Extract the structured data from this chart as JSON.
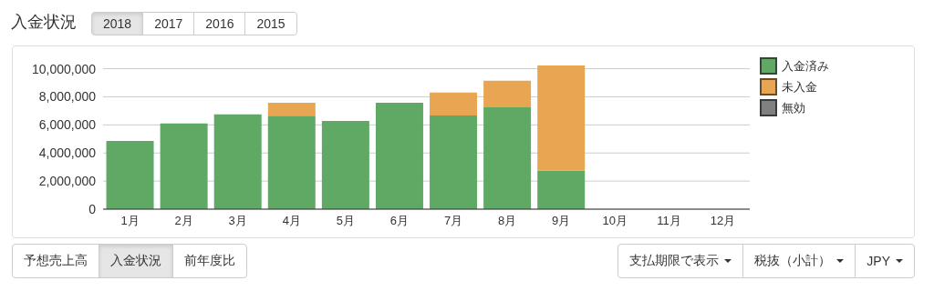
{
  "chart_data": {
    "type": "bar",
    "title": "入金状況",
    "stacked": true,
    "legend": "right",
    "grid": "y",
    "categories": [
      "1月",
      "2月",
      "3月",
      "4月",
      "5月",
      "6月",
      "7月",
      "8月",
      "9月",
      "10月",
      "11月",
      "12月"
    ],
    "series": [
      {
        "name": "入金済み",
        "color": "#5fa965",
        "values": [
          4850000,
          6100000,
          6750000,
          6650000,
          6280000,
          7580000,
          6670000,
          7250000,
          2730000,
          null,
          null,
          null
        ]
      },
      {
        "name": "未入金",
        "color": "#e8a653",
        "values": [
          null,
          null,
          null,
          930000,
          null,
          null,
          1630000,
          1900000,
          7500000,
          null,
          null,
          null
        ]
      },
      {
        "name": "無効",
        "color": "#808080",
        "values": [
          null,
          null,
          null,
          null,
          null,
          null,
          null,
          null,
          null,
          null,
          null,
          null
        ]
      }
    ],
    "yticks": [
      0,
      {
        "value": 2000000,
        "label": "2,000,000"
      },
      {
        "value": 4000000,
        "label": "4,000,000"
      },
      {
        "value": 6000000,
        "label": "6,000,000"
      },
      {
        "value": 8000000,
        "label": "8,000,000"
      },
      {
        "value": 10000000,
        "label": "10,000,000"
      }
    ],
    "ylim": [
      0,
      10230000
    ],
    "annotations": [
      "2018",
      "2017",
      "2016",
      "2015",
      "予想売上高",
      "入金状況",
      "前年度比",
      "支払期限で表示",
      "税抜（小計）",
      "JPY"
    ]
  }
}
